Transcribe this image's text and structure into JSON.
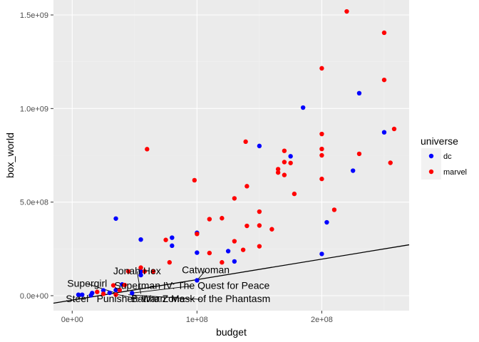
{
  "chart_data": {
    "type": "scatter",
    "title": "",
    "xlabel": "budget",
    "ylabel": "box_world",
    "xlim": [
      -15000000,
      270000000
    ],
    "ylim": [
      -80000000,
      1580000000
    ],
    "x_ticks": [
      {
        "value": 0,
        "label": "0e+00"
      },
      {
        "value": 100000000,
        "label": "1e+08"
      },
      {
        "value": 200000000,
        "label": "2e+08"
      }
    ],
    "y_ticks": [
      {
        "value": 0,
        "label": "0.0e+00"
      },
      {
        "value": 500000000,
        "label": "5.0e+08"
      },
      {
        "value": 1000000000,
        "label": "1.0e+09"
      },
      {
        "value": 1500000000,
        "label": "1.5e+09"
      }
    ],
    "grid": true,
    "legend": {
      "title": "universe",
      "placement": "right",
      "items": [
        {
          "name": "dc",
          "color": "#0000ff"
        },
        {
          "name": "marvel",
          "color": "#ff0000"
        }
      ]
    },
    "series": [
      {
        "name": "dc",
        "color": "#0000ff",
        "points": [
          [
            35000000,
            412000000
          ],
          [
            55000000,
            300000000
          ],
          [
            80000000,
            310000000
          ],
          [
            80000000,
            267000000
          ],
          [
            100000000,
            336000000
          ],
          [
            100000000,
            230000000
          ],
          [
            100000000,
            82000000
          ],
          [
            125000000,
            238000000
          ],
          [
            130000000,
            183000000
          ],
          [
            150000000,
            800000000
          ],
          [
            175000000,
            745000000
          ],
          [
            185000000,
            1005000000
          ],
          [
            200000000,
            223000000
          ],
          [
            204000000,
            392000000
          ],
          [
            225000000,
            668000000
          ],
          [
            230000000,
            1082000000
          ],
          [
            250000000,
            873000000
          ],
          [
            55000000,
            130000000
          ],
          [
            55000000,
            110000000
          ],
          [
            40000000,
            60000000
          ],
          [
            35000000,
            30000000
          ],
          [
            25000000,
            28000000
          ],
          [
            16000000,
            14000000
          ],
          [
            48000000,
            14000000
          ],
          [
            5000000,
            5000000
          ],
          [
            8000000,
            5000000
          ],
          [
            15000000,
            2000000
          ],
          [
            30000000,
            15000000
          ]
        ]
      },
      {
        "name": "marvel",
        "color": "#ff0000",
        "points": [
          [
            33000000,
            55000000
          ],
          [
            42000000,
            57000000
          ],
          [
            45000000,
            130000000
          ],
          [
            55000000,
            150000000
          ],
          [
            58000000,
            130000000
          ],
          [
            60000000,
            783000000
          ],
          [
            65000000,
            130000000
          ],
          [
            75000000,
            298000000
          ],
          [
            78000000,
            178000000
          ],
          [
            98000000,
            617000000
          ],
          [
            100000000,
            330000000
          ],
          [
            110000000,
            409000000
          ],
          [
            110000000,
            228000000
          ],
          [
            120000000,
            414000000
          ],
          [
            120000000,
            178000000
          ],
          [
            130000000,
            520000000
          ],
          [
            130000000,
            291000000
          ],
          [
            137000000,
            245000000
          ],
          [
            139000000,
            823000000
          ],
          [
            140000000,
            585000000
          ],
          [
            140000000,
            373000000
          ],
          [
            150000000,
            449000000
          ],
          [
            150000000,
            375000000
          ],
          [
            150000000,
            264000000
          ],
          [
            160000000,
            355000000
          ],
          [
            165000000,
            676000000
          ],
          [
            165000000,
            658000000
          ],
          [
            170000000,
            774000000
          ],
          [
            170000000,
            714000000
          ],
          [
            170000000,
            645000000
          ],
          [
            175000000,
            709000000
          ],
          [
            178000000,
            544000000
          ],
          [
            200000000,
            1215000000
          ],
          [
            200000000,
            864000000
          ],
          [
            200000000,
            784000000
          ],
          [
            200000000,
            750000000
          ],
          [
            200000000,
            624000000
          ],
          [
            210000000,
            459000000
          ],
          [
            220000000,
            1519000000
          ],
          [
            230000000,
            758000000
          ],
          [
            250000000,
            1405000000
          ],
          [
            250000000,
            1153000000
          ],
          [
            255000000,
            710000000
          ],
          [
            258000000,
            891000000
          ],
          [
            20000000,
            20000000
          ],
          [
            38000000,
            30000000
          ],
          [
            35000000,
            5000000
          ],
          [
            25000000,
            10000000
          ]
        ]
      }
    ],
    "fit_line": {
      "x": [
        -15000000,
        270000000
      ],
      "y": [
        -40000000,
        272000000
      ]
    },
    "annotations": [
      {
        "text": "Supergirl",
        "x": 35000000,
        "y": 14000000,
        "tx": 12000000,
        "ty": 48000000
      },
      {
        "text": "Jonah Hex",
        "x": 55000000,
        "y": 10000000,
        "tx": 52000000,
        "ty": 115000000
      },
      {
        "text": "Catwoman",
        "x": 100000000,
        "y": 82000000,
        "tx": 107000000,
        "ty": 120000000
      },
      {
        "text": "Superman IV: The Quest for Peace",
        "x": 48000000,
        "y": 14000000,
        "tx": 96000000,
        "ty": 37000000
      },
      {
        "text": "Steel",
        "x": 8000000,
        "y": 5000000,
        "tx": 4000000,
        "ty": -35000000
      },
      {
        "text": "Punisher: War Zone",
        "x": 35000000,
        "y": 8000000,
        "tx": 55000000,
        "ty": -35000000
      },
      {
        "text": "Batman: Mask of the Phantasm",
        "x": 45000000,
        "y": 5000000,
        "tx": 103000000,
        "ty": -35000000
      }
    ]
  }
}
